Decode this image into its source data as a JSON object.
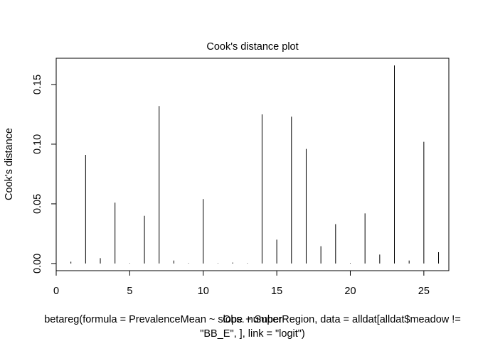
{
  "chart_data": {
    "type": "bar",
    "title": "Cook's distance plot",
    "xlabel": "Obs. number",
    "ylabel": "Cook's distance",
    "subtitle_lines": [
      "betareg(formula = PrevalenceMean ~ slope + SuperRegion, data = alldat[alldat$meadow !=",
      "\"BB_E\", ], link = \"logit\")"
    ],
    "xlim": [
      0,
      26.7
    ],
    "ylim": [
      -0.006,
      0.172
    ],
    "x_ticks": [
      0,
      5,
      10,
      15,
      20,
      25
    ],
    "y_ticks": [
      0.0,
      0.05,
      0.1,
      0.15
    ],
    "x_tick_labels": [
      "0",
      "5",
      "10",
      "15",
      "20",
      "25"
    ],
    "y_tick_labels": [
      "0.00",
      "0.05",
      "0.10",
      "0.15"
    ],
    "grid": false,
    "x": [
      1,
      2,
      3,
      4,
      5,
      6,
      7,
      8,
      9,
      10,
      11,
      12,
      13,
      14,
      15,
      16,
      17,
      18,
      19,
      20,
      21,
      22,
      23,
      24,
      25,
      26
    ],
    "values": [
      0.0015,
      0.091,
      0.0045,
      0.051,
      0.0003,
      0.04,
      0.132,
      0.0025,
      0.0003,
      0.054,
      0.0003,
      0.0008,
      0.0003,
      0.125,
      0.02,
      0.123,
      0.096,
      0.0145,
      0.033,
      0.0004,
      0.042,
      0.0075,
      0.166,
      0.0025,
      0.102,
      0.0095
    ]
  }
}
